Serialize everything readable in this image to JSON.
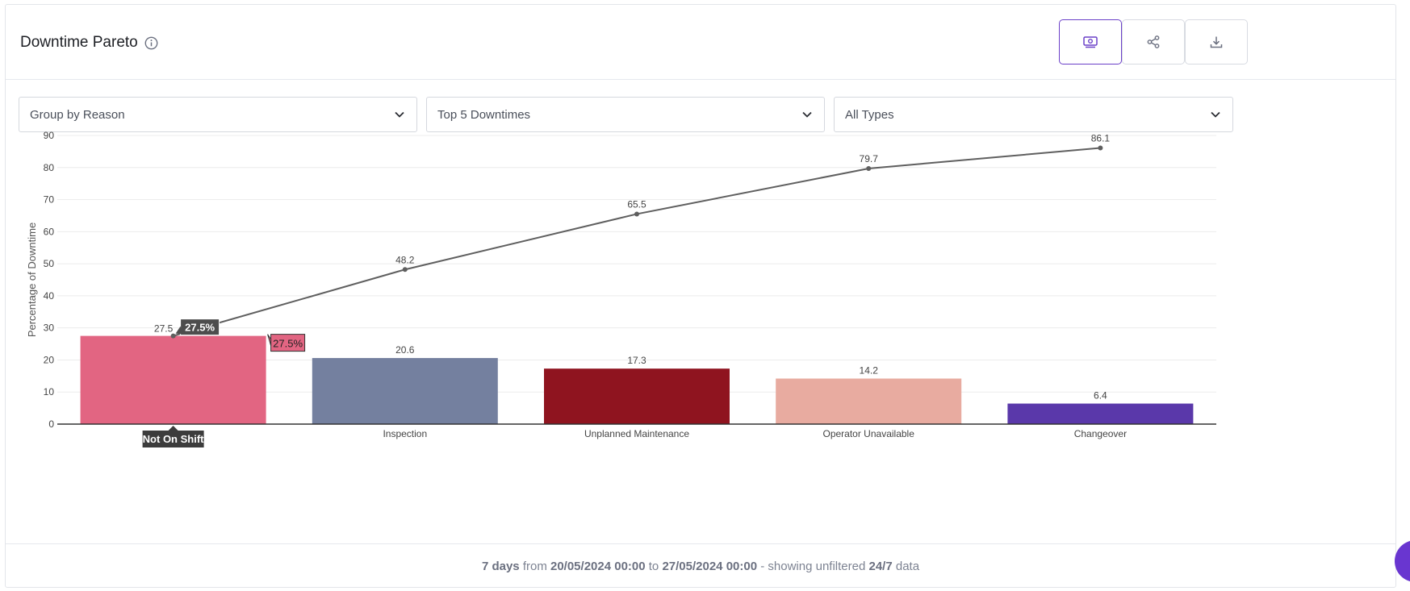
{
  "header": {
    "title": "Downtime Pareto",
    "buttons": [
      {
        "name": "money-view-button",
        "icon": "cash-icon",
        "active": true
      },
      {
        "name": "share-button",
        "icon": "share-icon",
        "active": false
      },
      {
        "name": "download-button",
        "icon": "download-icon",
        "active": false
      }
    ]
  },
  "filters": {
    "group_by": "Group by Reason",
    "top_n": "Top 5 Downtimes",
    "types": "All Types"
  },
  "chart_data": {
    "type": "bar",
    "categories": [
      "Not On Shift",
      "Inspection",
      "Unplanned Maintenance",
      "Operator Unavailable",
      "Changeover"
    ],
    "values": [
      27.5,
      20.6,
      17.3,
      14.2,
      6.4
    ],
    "bar_labels": [
      "27.5",
      "20.6",
      "17.3",
      "14.2",
      "6.4"
    ],
    "line_values": [
      27.5,
      48.2,
      65.5,
      79.7,
      86.1
    ],
    "line_labels": [
      "27.5",
      "48.2",
      "65.5",
      "79.7",
      "86.1"
    ],
    "colors": [
      "#e26582",
      "#74809f",
      "#8f141f",
      "#e8aba0",
      "#5a38aa"
    ],
    "line_color": "#5f5f5f",
    "ylabel": "Percentage of Downtime",
    "xlabel": "",
    "ylim": [
      0,
      90
    ],
    "yticks": [
      0,
      10,
      20,
      30,
      40,
      50,
      60,
      70,
      80,
      90
    ],
    "grid": true,
    "hovered_category": "Not On Shift",
    "tooltip_line": "27.5%",
    "tooltip_bar": "27.5%"
  },
  "footer": {
    "days": "7 days",
    "from_word": "from",
    "start": "20/05/2024 00:00",
    "to_word": "to",
    "end": "27/05/2024 00:00",
    "middle": "- showing unfiltered",
    "mode": "24/7",
    "tail": "data"
  }
}
